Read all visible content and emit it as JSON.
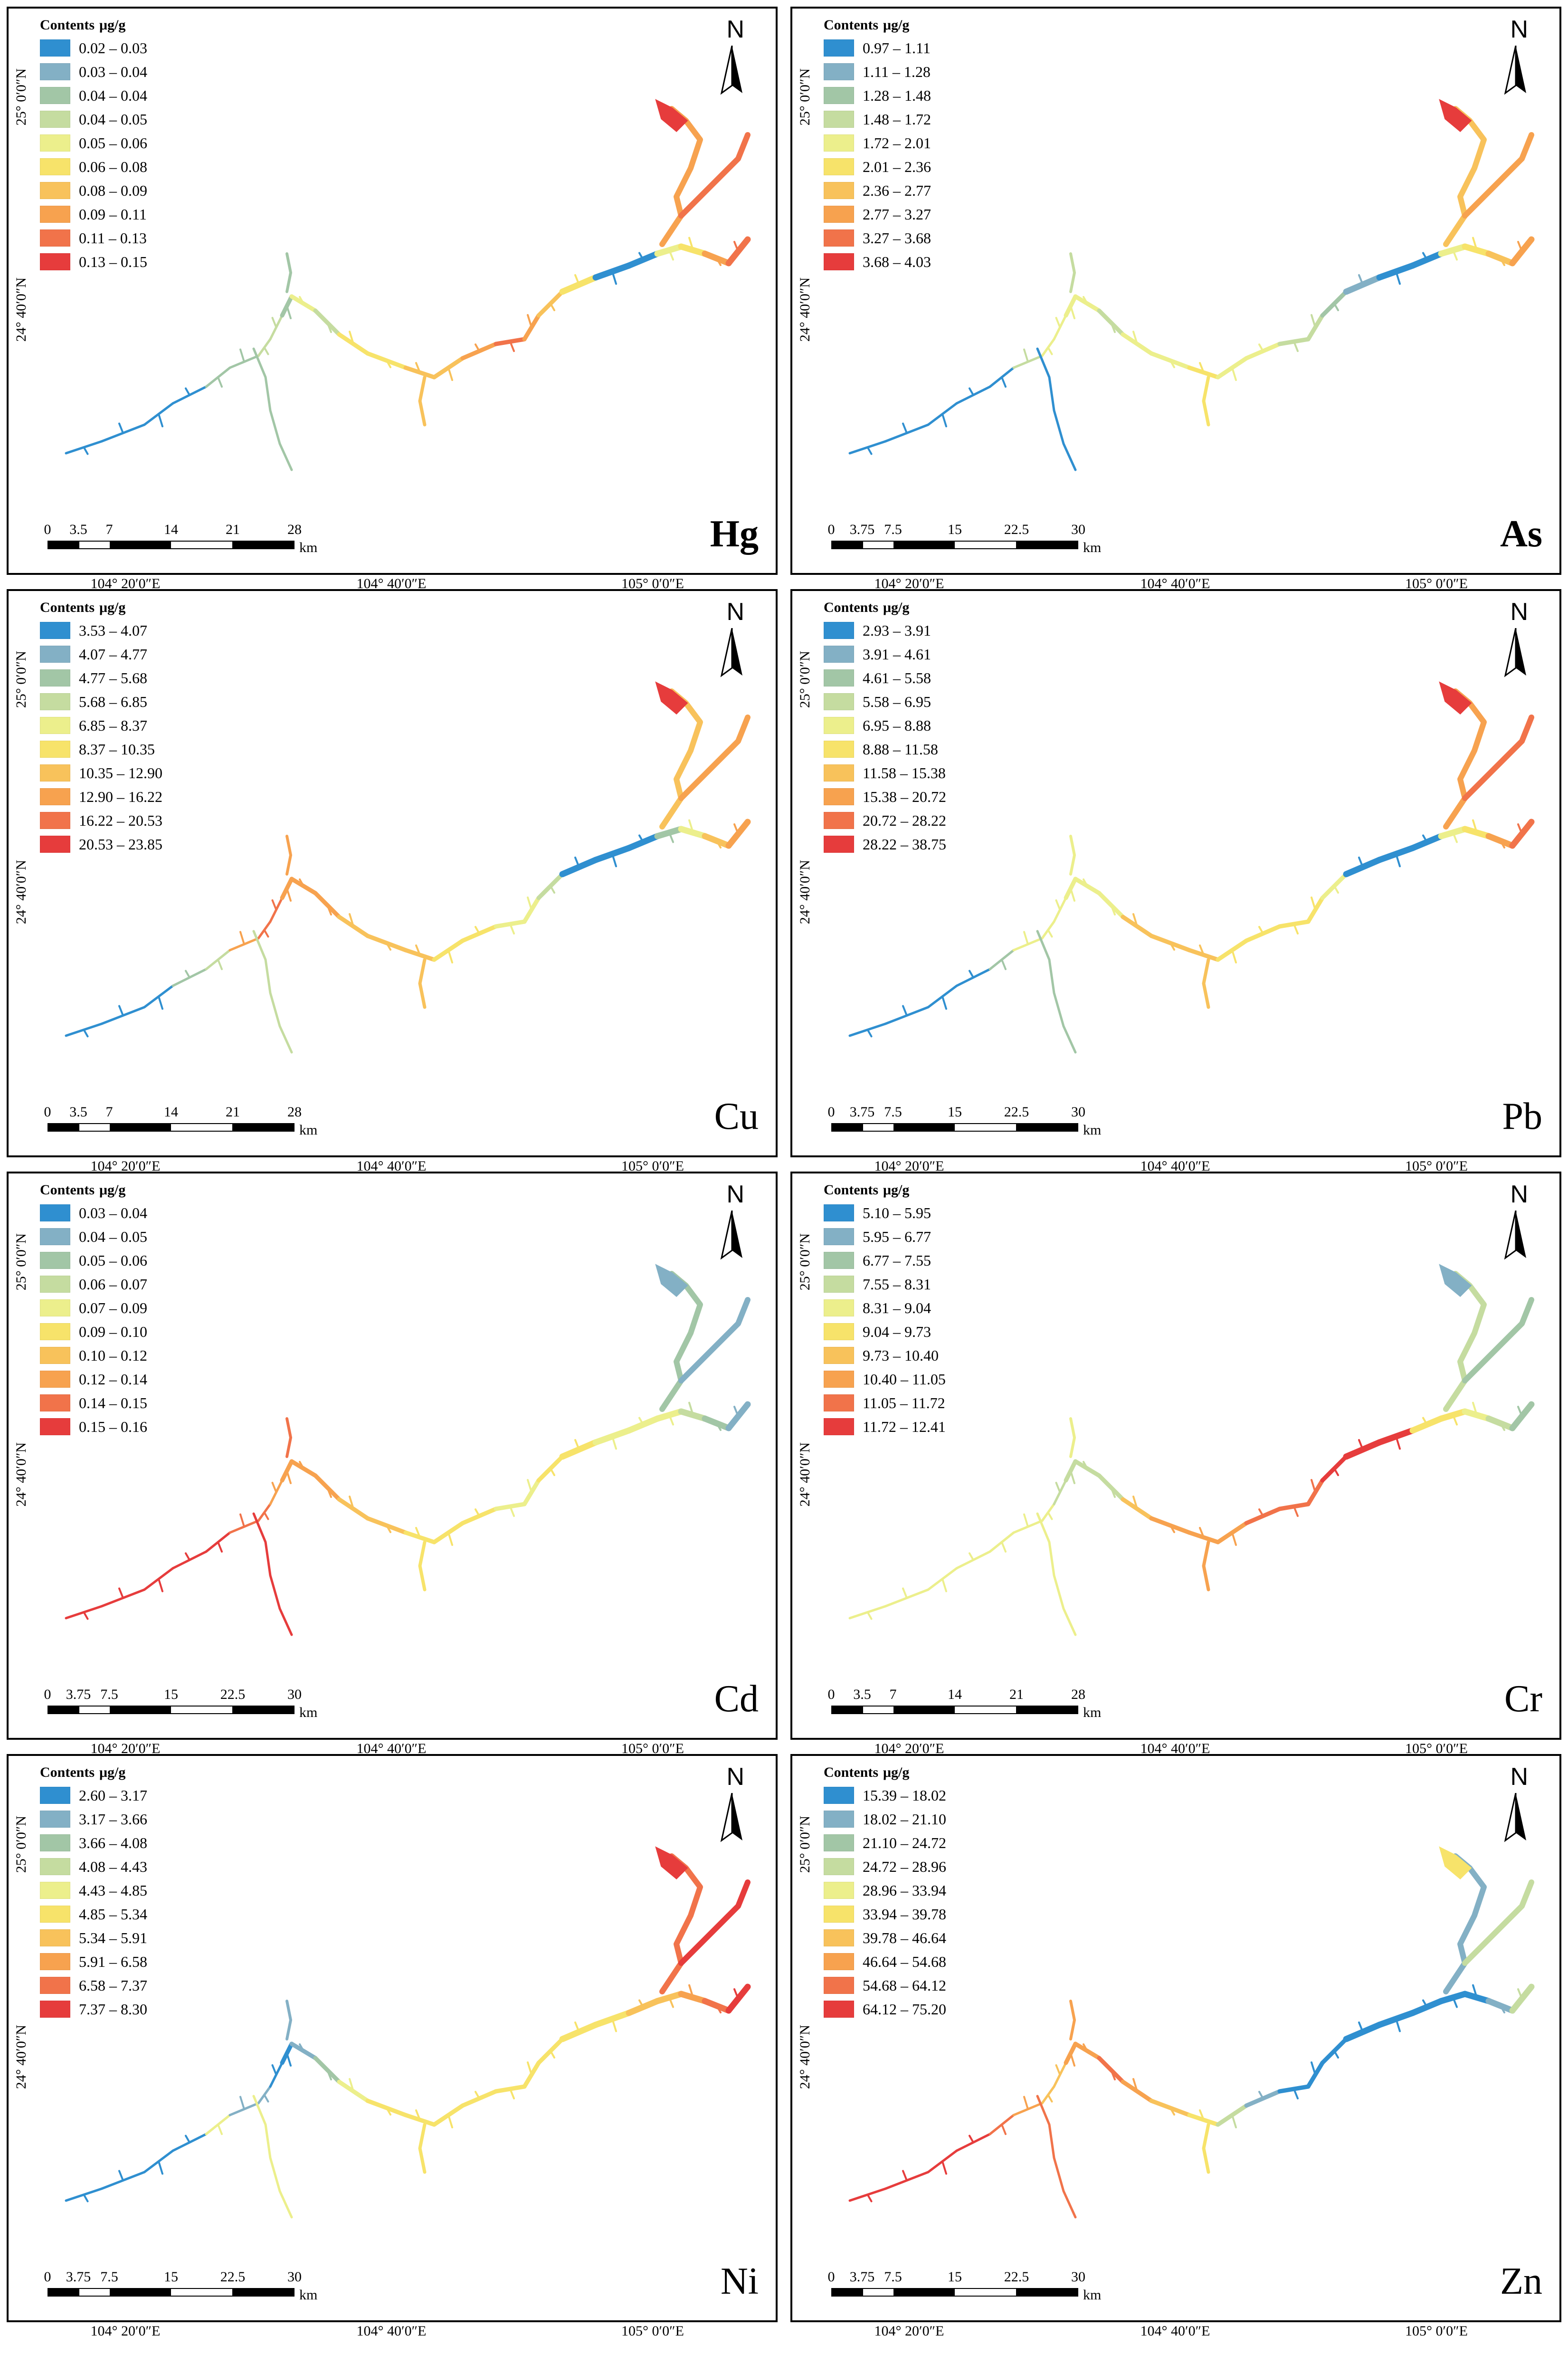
{
  "colors": [
    "#2f8fd0",
    "#83b0c5",
    "#a2c6a6",
    "#c5dca0",
    "#ecef8c",
    "#f7e36a",
    "#f8c25b",
    "#f7a24f",
    "#f1734a",
    "#e63c3c"
  ],
  "legend_title": "Contents",
  "legend_unit": "μg/g",
  "north_label": "N",
  "lat_labels": [
    "25° 0′0″N",
    "24° 40′0″N"
  ],
  "lon_labels": [
    "104° 20′0″E",
    "104° 40′0″E",
    "105° 0′0″E"
  ],
  "scale_unit": "km",
  "panels": [
    {
      "element": "Hg",
      "bold": true,
      "scale": [
        "0",
        "3.5",
        "7",
        "14",
        "21",
        "28"
      ],
      "legend": [
        "0.02 – 0.03",
        "0.03 – 0.04",
        "0.04 – 0.04",
        "0.04 – 0.05",
        "0.05 – 0.06",
        "0.06 – 0.08",
        "0.08 – 0.09",
        "0.09 – 0.11",
        "0.11 – 0.13",
        "0.13 – 0.15"
      ],
      "segments": [
        0,
        0,
        0,
        0,
        2,
        2,
        3,
        3,
        2,
        4,
        3,
        5,
        5,
        6,
        6,
        7,
        8,
        7,
        6,
        5,
        0,
        0,
        4,
        5,
        7,
        8,
        9
      ]
    },
    {
      "element": "As",
      "bold": true,
      "scale": [
        "0",
        "3.75",
        "7.5",
        "15",
        "22.5",
        "30"
      ],
      "legend": [
        "0.97 – 1.11",
        "1.11 – 1.28",
        "1.28 – 1.48",
        "1.48 – 1.72",
        "1.72 – 2.01",
        "2.01 – 2.36",
        "2.36 – 2.77",
        "2.77 – 3.27",
        "3.27 – 3.68",
        "3.68 – 4.03"
      ],
      "segments": [
        0,
        0,
        0,
        0,
        0,
        3,
        4,
        4,
        4,
        4,
        3,
        4,
        4,
        5,
        4,
        4,
        3,
        3,
        2,
        1,
        0,
        0,
        4,
        5,
        6,
        7,
        9
      ]
    },
    {
      "element": "Cu",
      "bold": false,
      "scale": [
        "0",
        "3.5",
        "7",
        "14",
        "21",
        "28"
      ],
      "legend": [
        "3.53 – 4.07",
        "4.07 – 4.77",
        "4.77 – 5.68",
        "5.68 – 6.85",
        "6.85 – 8.37",
        "8.37 – 10.35",
        "10.35 – 12.90",
        "12.90 – 16.22",
        "16.22 – 20.53",
        "20.53 – 23.85"
      ],
      "segments": [
        0,
        0,
        0,
        2,
        3,
        7,
        8,
        8,
        7,
        7,
        7,
        6,
        6,
        6,
        5,
        5,
        4,
        4,
        3,
        0,
        0,
        0,
        2,
        4,
        6,
        7,
        9
      ]
    },
    {
      "element": "Pb",
      "bold": false,
      "scale": [
        "0",
        "3.75",
        "7.5",
        "15",
        "22.5",
        "30"
      ],
      "legend": [
        "2.93 – 3.91",
        "3.91 – 4.61",
        "4.61 – 5.58",
        "5.58 – 6.95",
        "6.95 – 8.88",
        "8.88 – 11.58",
        "11.58 – 15.38",
        "15.38 – 20.72",
        "20.72 – 28.22",
        "28.22 – 38.75"
      ],
      "segments": [
        0,
        0,
        0,
        0,
        2,
        4,
        4,
        4,
        4,
        4,
        4,
        6,
        6,
        6,
        5,
        5,
        5,
        5,
        4,
        0,
        0,
        0,
        4,
        5,
        7,
        8,
        9
      ]
    },
    {
      "element": "Cd",
      "bold": false,
      "scale": [
        "0",
        "3.75",
        "7.5",
        "15",
        "22.5",
        "30"
      ],
      "legend": [
        "0.03 – 0.04",
        "0.04 – 0.05",
        "0.05 – 0.06",
        "0.06 – 0.07",
        "0.07 – 0.09",
        "0.09 – 0.10",
        "0.10 – 0.12",
        "0.12 – 0.14",
        "0.14 – 0.15",
        "0.15 – 0.16"
      ],
      "segments": [
        9,
        9,
        9,
        9,
        9,
        8,
        8,
        7,
        7,
        7,
        7,
        6,
        6,
        5,
        5,
        5,
        4,
        4,
        5,
        5,
        4,
        4,
        4,
        3,
        2,
        1,
        1
      ]
    },
    {
      "element": "Cr",
      "bold": false,
      "scale": [
        "0",
        "3.5",
        "7",
        "14",
        "21",
        "28"
      ],
      "legend": [
        "5.10 – 5.95",
        "5.95 – 6.77",
        "6.77 – 7.55",
        "7.55 – 8.31",
        "8.31 – 9.04",
        "9.04 – 9.73",
        "9.73 – 10.40",
        "10.40 – 11.05",
        "11.05 – 11.72",
        "11.72 – 12.41"
      ],
      "segments": [
        4,
        4,
        4,
        4,
        4,
        4,
        4,
        3,
        3,
        3,
        3,
        6,
        7,
        7,
        7,
        8,
        8,
        8,
        9,
        9,
        9,
        5,
        5,
        4,
        3,
        2,
        1
      ]
    },
    {
      "element": "Ni",
      "bold": false,
      "scale": [
        "0",
        "3.75",
        "7.5",
        "15",
        "22.5",
        "30"
      ],
      "legend": [
        "2.60 – 3.17",
        "3.17 – 3.66",
        "3.66 – 4.08",
        "4.08 – 4.43",
        "4.43 – 4.85",
        "4.85 – 5.34",
        "5.34 – 5.91",
        "5.91 – 6.58",
        "6.58 – 7.37",
        "7.37 – 8.30"
      ],
      "segments": [
        0,
        0,
        0,
        0,
        4,
        1,
        1,
        0,
        0,
        1,
        2,
        4,
        5,
        5,
        5,
        5,
        5,
        5,
        5,
        5,
        5,
        6,
        6,
        7,
        8,
        9,
        9
      ]
    },
    {
      "element": "Zn",
      "bold": false,
      "scale": [
        "0",
        "3.75",
        "7.5",
        "15",
        "22.5",
        "30"
      ],
      "legend": [
        "15.39 – 18.02",
        "18.02 – 21.10",
        "21.10 – 24.72",
        "24.72 – 28.96",
        "28.96 – 33.94",
        "33.94 – 39.78",
        "39.78 – 46.64",
        "46.64 – 54.68",
        "54.68 – 64.12",
        "64.12 – 75.20"
      ],
      "segments": [
        9,
        9,
        9,
        9,
        8,
        7,
        6,
        6,
        7,
        7,
        8,
        7,
        6,
        5,
        3,
        1,
        0,
        0,
        0,
        0,
        0,
        0,
        0,
        0,
        1,
        3,
        5
      ]
    }
  ]
}
